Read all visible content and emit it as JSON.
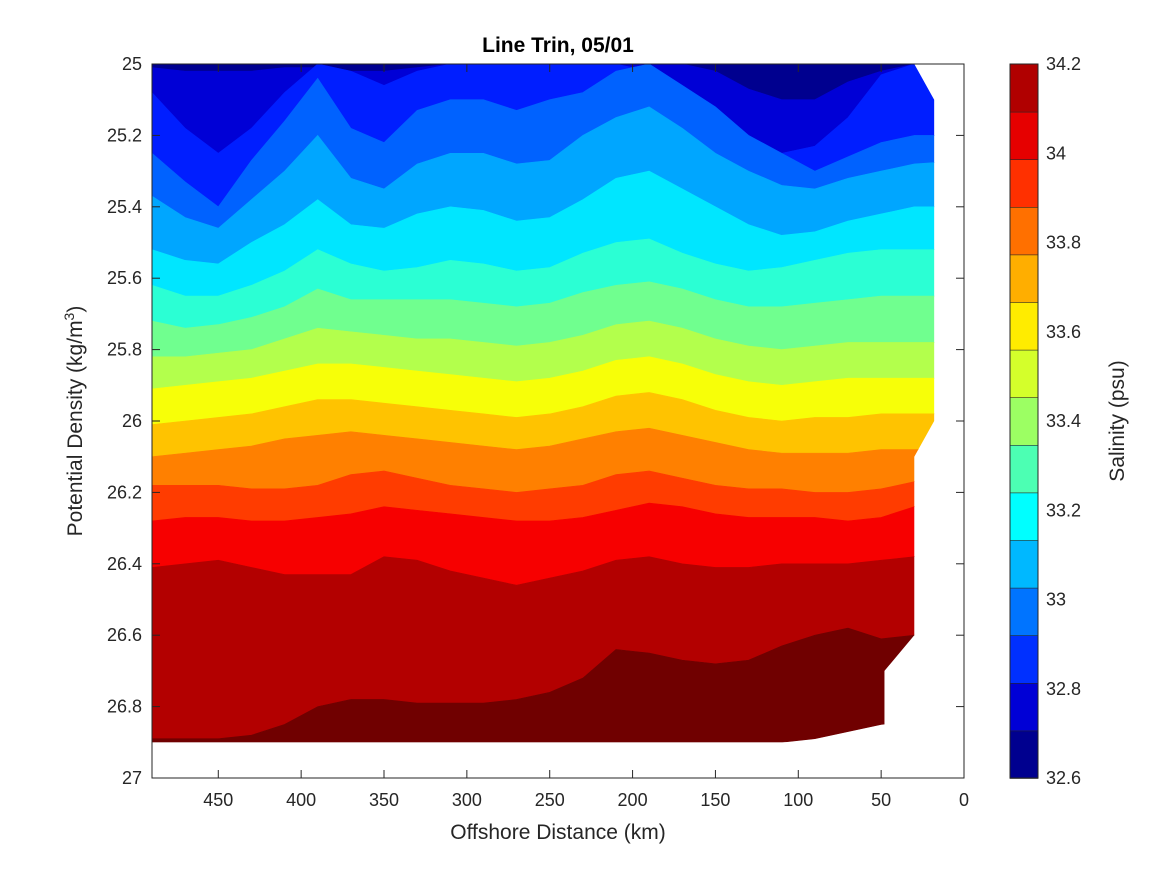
{
  "chart_data": {
    "type": "heatmap",
    "subtype": "filled-contour",
    "title": "Line Trin, 05/01",
    "xlabel": "Offshore Distance (km)",
    "ylabel_main": "Potential Density (kg/m",
    "ylabel_sup": "3",
    "ylabel_end": ")",
    "colorbar_label": "Salinity (psu)",
    "x_reversed": true,
    "y_reversed": true,
    "xlim": [
      0,
      490
    ],
    "ylim": [
      25,
      27
    ],
    "x_ticks": [
      450,
      400,
      350,
      300,
      250,
      200,
      150,
      100,
      50,
      0
    ],
    "x_tick_labels": [
      "450",
      "400",
      "350",
      "300",
      "250",
      "200",
      "150",
      "100",
      "50",
      "0"
    ],
    "y_ticks": [
      25,
      25.2,
      25.4,
      25.6,
      25.8,
      26,
      26.2,
      26.4,
      26.6,
      26.8,
      27
    ],
    "y_tick_labels": [
      "25",
      "25.2",
      "25.4",
      "25.6",
      "25.8",
      "26",
      "26.2",
      "26.4",
      "26.6",
      "26.8",
      "27"
    ],
    "clim": [
      32.6,
      34.2
    ],
    "colorbar_ticks": [
      32.6,
      32.8,
      33,
      33.2,
      33.4,
      33.6,
      33.8,
      34,
      34.2
    ],
    "colorbar_tick_labels": [
      "32.6",
      "32.8",
      "33",
      "33.2",
      "33.4",
      "33.6",
      "33.8",
      "34",
      "34.2"
    ],
    "levels": [
      32.6,
      32.7,
      32.8,
      32.9,
      33.0,
      33.1,
      33.2,
      33.3,
      33.4,
      33.5,
      33.6,
      33.7,
      33.8,
      33.9,
      34.0,
      34.1,
      34.2
    ],
    "colors": [
      "#00008f",
      "#0000d6",
      "#001eff",
      "#0062ff",
      "#00a6ff",
      "#00e6ff",
      "#2bffd4",
      "#70ff8f",
      "#b3ff4c",
      "#f7ff08",
      "#ffc300",
      "#ff8000",
      "#ff3c00",
      "#f70000",
      "#b30000",
      "#700000"
    ],
    "colorbar_colors": [
      "#00008f",
      "#0000d6",
      "#0030ff",
      "#0074ff",
      "#00b8ff",
      "#00ffff",
      "#4cffb3",
      "#9cff63",
      "#d4ff2b",
      "#ffec00",
      "#ffae00",
      "#ff7000",
      "#ff3000",
      "#e60000",
      "#b00000"
    ],
    "x_grid": [
      490,
      470,
      450,
      430,
      410,
      390,
      370,
      350,
      330,
      310,
      290,
      270,
      250,
      230,
      210,
      190,
      170,
      150,
      130,
      110,
      90,
      70,
      50,
      30,
      18
    ],
    "contours": [
      {
        "level": 32.7,
        "y": [
          25.01,
          25.02,
          25.02,
          25.02,
          25.01,
          25.01,
          25.02,
          25.02,
          25.01,
          25.0,
          25.0,
          25.0,
          25.0,
          25.0,
          25.0,
          25.0,
          25.0,
          25.02,
          25.07,
          25.1,
          25.1,
          25.05,
          25.02,
          25.0,
          25.0
        ]
      },
      {
        "level": 32.8,
        "y": [
          25.08,
          25.18,
          25.25,
          25.18,
          25.08,
          25.0,
          25.02,
          25.06,
          25.02,
          25.0,
          25.0,
          25.0,
          25.0,
          25.0,
          25.0,
          25.02,
          25.08,
          25.17,
          25.25,
          25.25,
          25.23,
          25.15,
          25.03,
          25.0,
          25.0
        ]
      },
      {
        "level": 32.9,
        "y": [
          25.25,
          25.33,
          25.4,
          25.27,
          25.16,
          25.04,
          25.18,
          25.22,
          25.13,
          25.1,
          25.1,
          25.13,
          25.1,
          25.08,
          25.02,
          25.0,
          25.06,
          25.12,
          25.2,
          25.25,
          25.3,
          25.26,
          25.22,
          25.2,
          25.2
        ]
      },
      {
        "level": 33.0,
        "y": [
          25.37,
          25.43,
          25.46,
          25.38,
          25.3,
          25.2,
          25.32,
          25.35,
          25.28,
          25.25,
          25.25,
          25.28,
          25.27,
          25.2,
          25.15,
          25.12,
          25.18,
          25.25,
          25.3,
          25.34,
          25.35,
          25.32,
          25.3,
          25.28,
          25.27
        ]
      },
      {
        "level": 33.1,
        "y": [
          25.52,
          25.55,
          25.56,
          25.5,
          25.45,
          25.38,
          25.45,
          25.46,
          25.42,
          25.4,
          25.41,
          25.44,
          25.43,
          25.38,
          25.32,
          25.3,
          25.35,
          25.4,
          25.45,
          25.48,
          25.47,
          25.44,
          25.42,
          25.4,
          25.4
        ]
      },
      {
        "level": 33.2,
        "y": [
          25.62,
          25.65,
          25.65,
          25.62,
          25.58,
          25.52,
          25.56,
          25.58,
          25.57,
          25.55,
          25.56,
          25.58,
          25.57,
          25.53,
          25.5,
          25.49,
          25.53,
          25.56,
          25.58,
          25.57,
          25.55,
          25.53,
          25.52,
          25.52,
          25.52
        ]
      },
      {
        "level": 33.3,
        "y": [
          25.72,
          25.74,
          25.73,
          25.71,
          25.68,
          25.63,
          25.66,
          25.66,
          25.66,
          25.66,
          25.67,
          25.68,
          25.67,
          25.64,
          25.62,
          25.61,
          25.63,
          25.66,
          25.68,
          25.68,
          25.67,
          25.66,
          25.65,
          25.65,
          25.65
        ]
      },
      {
        "level": 33.4,
        "y": [
          25.82,
          25.82,
          25.81,
          25.8,
          25.77,
          25.74,
          25.75,
          25.76,
          25.77,
          25.77,
          25.78,
          25.79,
          25.78,
          25.76,
          25.73,
          25.72,
          25.74,
          25.77,
          25.79,
          25.8,
          25.79,
          25.78,
          25.78,
          25.78,
          25.78
        ]
      },
      {
        "level": 33.5,
        "y": [
          25.91,
          25.9,
          25.89,
          25.88,
          25.86,
          25.84,
          25.84,
          25.85,
          25.86,
          25.87,
          25.88,
          25.89,
          25.88,
          25.86,
          25.83,
          25.82,
          25.84,
          25.87,
          25.89,
          25.9,
          25.89,
          25.88,
          25.88,
          25.88,
          25.88
        ]
      },
      {
        "level": 33.6,
        "y": [
          26.01,
          26.0,
          25.99,
          25.98,
          25.96,
          25.94,
          25.94,
          25.95,
          25.96,
          25.97,
          25.98,
          25.99,
          25.98,
          25.96,
          25.93,
          25.92,
          25.94,
          25.97,
          25.99,
          26.0,
          25.99,
          25.99,
          25.98,
          25.98,
          25.98
        ]
      },
      {
        "level": 33.7,
        "y": [
          26.1,
          26.09,
          26.08,
          26.07,
          26.05,
          26.04,
          26.03,
          26.04,
          26.05,
          26.06,
          26.07,
          26.08,
          26.07,
          26.05,
          26.03,
          26.02,
          26.04,
          26.06,
          26.08,
          26.09,
          26.09,
          26.09,
          26.08,
          26.08,
          26.08
        ]
      },
      {
        "level": 33.8,
        "y": [
          26.18,
          26.18,
          26.18,
          26.19,
          26.19,
          26.18,
          26.15,
          26.14,
          26.16,
          26.18,
          26.19,
          26.2,
          26.19,
          26.18,
          26.15,
          26.14,
          26.16,
          26.18,
          26.19,
          26.19,
          26.2,
          26.2,
          26.19,
          26.17,
          26.12
        ]
      },
      {
        "level": 33.9,
        "y": [
          26.28,
          26.27,
          26.27,
          26.28,
          26.28,
          26.27,
          26.26,
          26.24,
          26.25,
          26.26,
          26.27,
          26.28,
          26.28,
          26.27,
          26.25,
          26.23,
          26.24,
          26.26,
          26.27,
          26.27,
          26.27,
          26.28,
          26.27,
          26.24,
          26.22
        ]
      },
      {
        "level": 34.0,
        "y": [
          26.41,
          26.4,
          26.39,
          26.41,
          26.43,
          26.43,
          26.43,
          26.38,
          26.39,
          26.42,
          26.44,
          26.46,
          26.44,
          26.42,
          26.39,
          26.38,
          26.4,
          26.41,
          26.41,
          26.4,
          26.4,
          26.4,
          26.39,
          26.38,
          26.37
        ]
      },
      {
        "level": 34.1,
        "y": [
          26.89,
          26.89,
          26.89,
          26.88,
          26.85,
          26.8,
          26.78,
          26.78,
          26.79,
          26.79,
          26.79,
          26.78,
          26.76,
          26.72,
          26.64,
          26.65,
          26.67,
          26.68,
          26.67,
          26.63,
          26.6,
          26.58,
          26.61,
          26.6,
          26.59
        ]
      },
      {
        "level": 34.2,
        "y": [
          26.9,
          26.9,
          26.9,
          26.9,
          26.9,
          26.9,
          26.9,
          26.9,
          26.9,
          26.9,
          26.9,
          26.9,
          26.9,
          26.9,
          26.9,
          26.9,
          26.9,
          26.9,
          26.9,
          26.9,
          26.89,
          26.87,
          26.85,
          26.84,
          26.84
        ]
      }
    ],
    "data_boundary": {
      "bottom": 26.9,
      "right_edge": [
        {
          "x": 30,
          "y": 25.0
        },
        {
          "x": 18,
          "y": 25.1
        },
        {
          "x": 18,
          "y": 26.0
        },
        {
          "x": 30,
          "y": 26.1
        },
        {
          "x": 30,
          "y": 26.6
        },
        {
          "x": 48,
          "y": 26.7
        },
        {
          "x": 48,
          "y": 26.9
        }
      ]
    }
  }
}
